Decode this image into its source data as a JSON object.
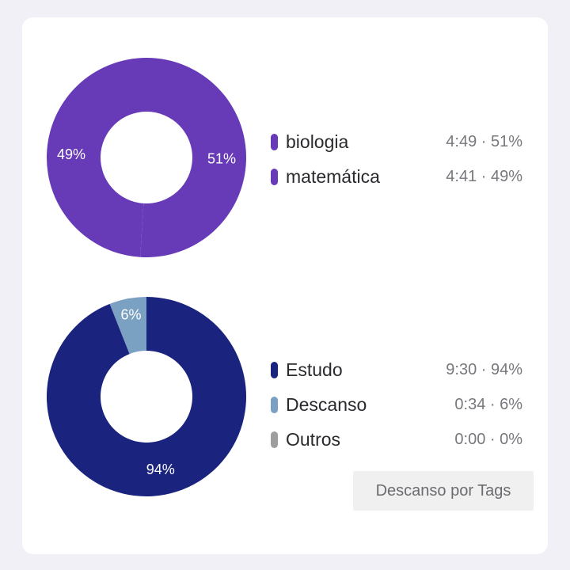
{
  "colors": {
    "background": "#f1f0f6",
    "card": "#ffffff",
    "biologia": "#673ab7",
    "matematica": "#673ab7",
    "estudo": "#1a237e",
    "descanso": "#7aa0c2",
    "outros": "#9e9e9e"
  },
  "chart_data": [
    {
      "type": "pie",
      "title": "",
      "categories": [
        "biologia",
        "matemática"
      ],
      "values": [
        51,
        49
      ],
      "durations": [
        "4:49",
        "4:41"
      ],
      "slice_labels": [
        "51%",
        "49%"
      ],
      "legend_values": [
        "4:49 · 51%",
        "4:41 · 49%"
      ],
      "colors": [
        "#673ab7",
        "#673ab7"
      ],
      "legend": "right"
    },
    {
      "type": "pie",
      "title": "",
      "categories": [
        "Estudo",
        "Descanso",
        "Outros"
      ],
      "values": [
        94,
        6,
        0
      ],
      "durations": [
        "9:30",
        "0:34",
        "0:00"
      ],
      "slice_labels": [
        "94%",
        "6%",
        ""
      ],
      "legend_values": [
        "9:30 · 94%",
        "0:34 · 6%",
        "0:00 · 0%"
      ],
      "colors": [
        "#1a237e",
        "#7aa0c2",
        "#9e9e9e"
      ],
      "legend": "right"
    }
  ],
  "button": {
    "label": "Descanso por Tags"
  }
}
